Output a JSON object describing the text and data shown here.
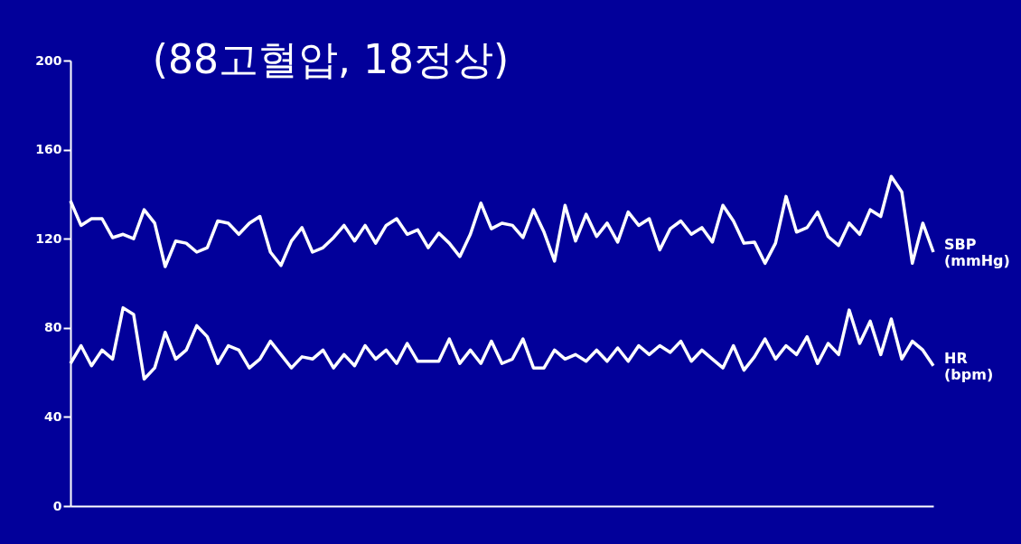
{
  "chart_data": {
    "type": "line",
    "title": "(88고혈압, 18정상)",
    "categories": [
      null,
      null,
      null,
      null,
      null,
      null,
      null,
      null,
      null,
      null,
      null,
      null,
      null,
      null,
      null,
      null,
      null,
      null,
      null,
      null,
      null,
      null,
      null,
      null,
      null,
      null,
      null,
      null,
      null,
      null,
      null,
      null,
      null,
      null,
      null,
      null,
      null,
      null,
      null,
      null,
      null,
      null,
      null,
      null,
      null,
      null,
      null,
      null,
      null,
      null,
      null,
      null,
      null,
      null,
      null,
      null,
      null,
      null,
      null,
      null,
      null,
      null,
      null,
      null,
      null,
      null,
      null,
      null,
      null,
      null,
      null,
      null,
      null,
      null,
      null,
      null,
      null,
      null,
      null,
      null,
      null,
      null,
      null
    ],
    "series": [
      {
        "name": "SBP\n(mmHg)",
        "color": "#ffffff",
        "values": [
          137,
          126,
          129,
          129,
          120.5,
          122,
          120,
          133,
          127,
          107.5,
          119,
          118,
          114,
          116,
          128,
          127,
          122,
          127,
          130,
          114,
          108,
          119,
          125,
          114,
          116,
          120.5,
          126,
          119,
          126,
          118,
          126,
          129,
          122,
          124,
          116,
          122.5,
          118,
          112,
          122,
          136,
          124.5,
          127,
          126,
          120.5,
          133,
          123,
          110,
          135,
          119,
          131,
          121,
          127,
          118.5,
          132,
          126,
          129,
          115,
          124.5,
          128,
          122,
          125,
          118.5,
          135,
          128,
          118,
          118.5,
          109,
          118,
          139,
          123,
          125,
          132,
          121,
          117,
          127,
          122,
          133,
          130,
          148,
          141,
          109,
          127,
          114
        ]
      },
      {
        "name": "HR\n(bpm)",
        "color": "#ffffff",
        "values": [
          64,
          72,
          63,
          70,
          66,
          89,
          86,
          57,
          62,
          78,
          66,
          70,
          81,
          76,
          64,
          72,
          70,
          62,
          66,
          74,
          68,
          62,
          67,
          66,
          70,
          62,
          68,
          63,
          72,
          66,
          70,
          64,
          73,
          65,
          65,
          65,
          75,
          64,
          70,
          64,
          74,
          64,
          66,
          75,
          62,
          62,
          70,
          66,
          68,
          65,
          70,
          65,
          71,
          65,
          72,
          68,
          72,
          69,
          74,
          65,
          70,
          66,
          62,
          72,
          61,
          67,
          75,
          66,
          72,
          68,
          76,
          64,
          73,
          68,
          88,
          73,
          83,
          68,
          84,
          66,
          74,
          70,
          63
        ]
      }
    ],
    "ylim": [
      0,
      200
    ],
    "yticks": [
      0,
      40,
      80,
      120,
      160,
      200
    ],
    "grid": false,
    "line_style": "solid",
    "marker": "none"
  }
}
